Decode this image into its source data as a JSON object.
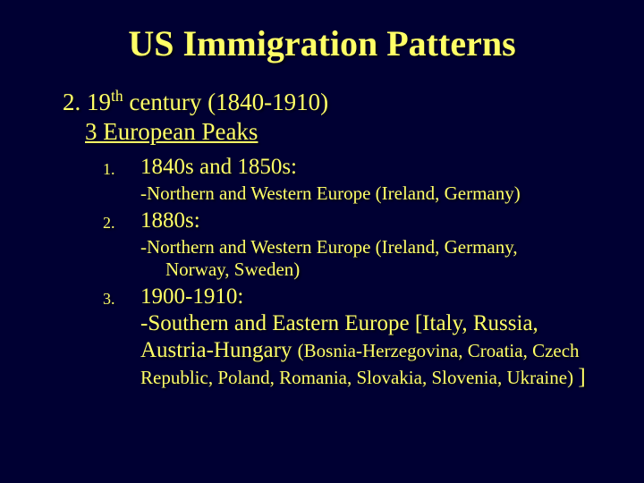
{
  "colors": {
    "background": "#000033",
    "text": "#ffff66",
    "shadow": "rgba(0,0,0,0.6)"
  },
  "typography": {
    "family": "Garamond, Georgia, Times New Roman, serif",
    "title_size": 40,
    "heading_size": 27,
    "item_main_size": 25,
    "item_sub_size": 21,
    "number_size": 18
  },
  "title": "US Immigration Patterns",
  "heading_prefix": "2. 19",
  "heading_suffix": " century (1840-1910)",
  "heading_sup": "th",
  "subheading": "3 European Peaks",
  "items": [
    {
      "num": "1.",
      "main": "1840s and 1850s:",
      "sub1": "-Northern and Western Europe (Ireland, Germany)"
    },
    {
      "num": "2.",
      "main": "1880s:",
      "sub1": "-Northern and Western Europe (Ireland, Germany,",
      "sub2": "Norway, Sweden)"
    },
    {
      "num": "3.",
      "main": "1900-1910:",
      "mix_big1": "-Southern and Eastern Europe [Italy, Russia, Austria-Hungary ",
      "mix_small": "(Bosnia-Herzegovina, Croatia, Czech Republic, Poland, Romania, Slovakia, Slovenia, Ukraine) ",
      "mix_big2": "]"
    }
  ]
}
